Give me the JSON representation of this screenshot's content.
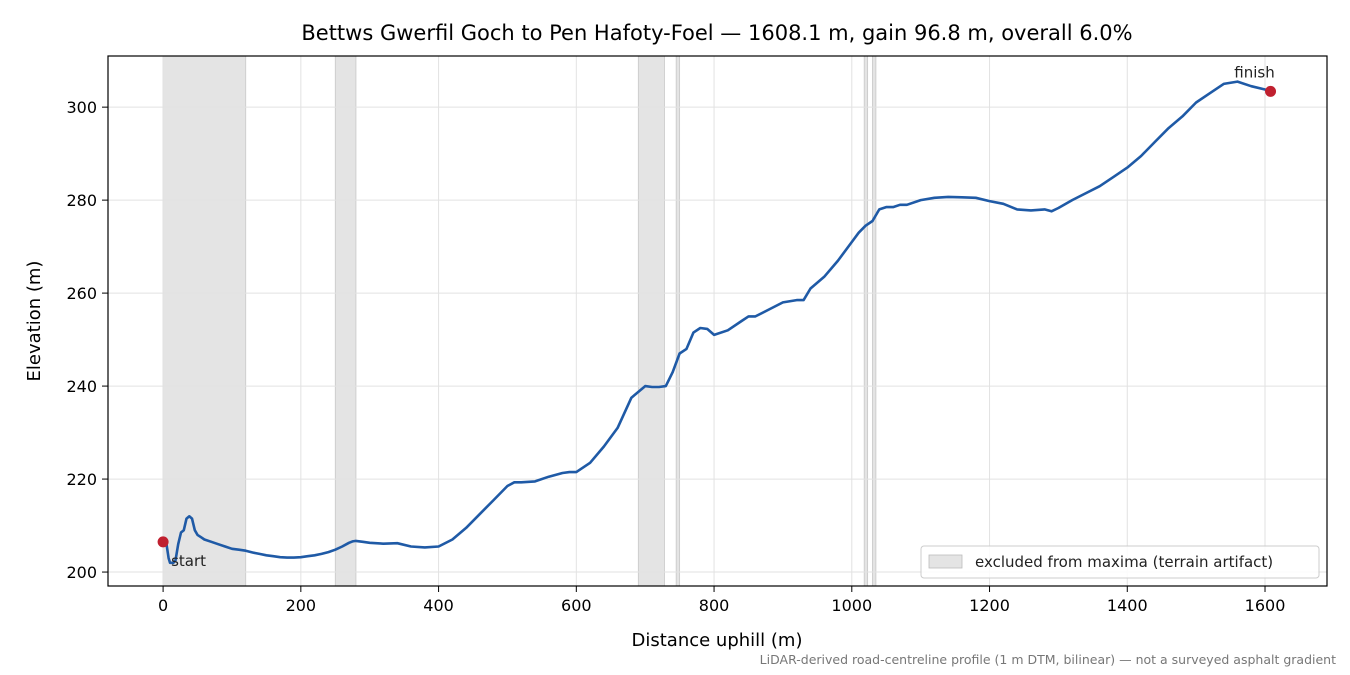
{
  "chart_data": {
    "type": "line",
    "title": "Bettws Gwerfil Goch to Pen Hafoty-Foel — 1608.1 m, gain 96.8 m, overall 6.0%",
    "xlabel": "Distance uphill (m)",
    "ylabel": "Elevation (m)",
    "xlim": [
      -80,
      1690
    ],
    "ylim": [
      197,
      311
    ],
    "x_ticks": [
      0,
      200,
      400,
      600,
      800,
      1000,
      1200,
      1400,
      1600
    ],
    "y_ticks": [
      200,
      220,
      240,
      260,
      280,
      300
    ],
    "grid": true,
    "line_color": "#1f5aa6",
    "marker_color": "#c0202f",
    "band_color": "#e4e4e4",
    "series": [
      {
        "x": [
          0,
          5,
          8,
          10,
          15,
          18,
          22,
          26,
          30,
          34,
          38,
          42,
          46,
          50,
          55,
          60,
          70,
          80,
          90,
          100,
          110,
          120,
          130,
          140,
          150,
          160,
          170,
          180,
          190,
          200,
          210,
          220,
          230,
          240,
          250,
          260,
          270,
          275,
          280,
          290,
          300,
          320,
          340,
          360,
          380,
          400,
          420,
          440,
          460,
          480,
          500,
          510,
          520,
          540,
          560,
          580,
          590,
          600,
          620,
          640,
          660,
          680,
          700,
          710,
          720,
          730,
          740,
          750,
          760,
          770,
          780,
          790,
          800,
          820,
          840,
          850,
          860,
          880,
          900,
          920,
          930,
          940,
          960,
          980,
          1000,
          1010,
          1020,
          1030,
          1040,
          1050,
          1060,
          1070,
          1080,
          1100,
          1120,
          1140,
          1160,
          1180,
          1200,
          1220,
          1240,
          1260,
          1280,
          1290,
          1300,
          1320,
          1340,
          1360,
          1380,
          1400,
          1420,
          1440,
          1460,
          1480,
          1500,
          1520,
          1540,
          1560,
          1580,
          1600,
          1608
        ],
        "y": [
          206.5,
          206.0,
          203.0,
          202.0,
          202.0,
          202.5,
          206.0,
          208.5,
          209.0,
          211.5,
          212.0,
          211.5,
          209.0,
          208.0,
          207.5,
          207.0,
          206.5,
          206.0,
          205.5,
          205.0,
          204.8,
          204.6,
          204.2,
          203.9,
          203.6,
          203.4,
          203.2,
          203.1,
          203.1,
          203.2,
          203.4,
          203.6,
          203.9,
          204.3,
          204.8,
          205.5,
          206.3,
          206.6,
          206.7,
          206.5,
          206.3,
          206.1,
          206.2,
          205.5,
          205.3,
          205.5,
          207.0,
          209.5,
          212.5,
          215.5,
          218.5,
          219.3,
          219.3,
          219.5,
          220.5,
          221.3,
          221.5,
          221.5,
          223.5,
          227.0,
          231.0,
          237.5,
          240.0,
          239.8,
          239.8,
          240.0,
          243.0,
          247.0,
          248.0,
          251.5,
          252.5,
          252.3,
          251.0,
          252.0,
          254.0,
          255.0,
          255.0,
          256.5,
          258.0,
          258.5,
          258.5,
          261.0,
          263.5,
          267.0,
          271.0,
          273.0,
          274.5,
          275.5,
          278.0,
          278.5,
          278.5,
          279.0,
          279.0,
          280.0,
          280.5,
          280.7,
          280.6,
          280.5,
          279.8,
          279.2,
          278.0,
          277.8,
          278.0,
          277.6,
          278.3,
          280.0,
          281.5,
          283.0,
          285.0,
          287.0,
          289.5,
          292.5,
          295.5,
          298.0,
          301.0,
          303.0,
          305.0,
          305.5,
          304.5,
          303.8,
          303.4
        ]
      }
    ],
    "markers": [
      {
        "label": "start",
        "x": 0,
        "y": 206.5
      },
      {
        "label": "finish",
        "x": 1608,
        "y": 303.4
      }
    ],
    "excluded_bands": [
      [
        0,
        120
      ],
      [
        250,
        280
      ],
      [
        690,
        728
      ],
      [
        745,
        750
      ],
      [
        1018,
        1023
      ],
      [
        1030,
        1035
      ]
    ],
    "legend": {
      "placement": "lower-right",
      "label": "excluded from maxima (terrain artifact)"
    },
    "footnote": "LiDAR-derived road-centreline profile (1 m DTM, bilinear) — not a surveyed asphalt gradient"
  }
}
